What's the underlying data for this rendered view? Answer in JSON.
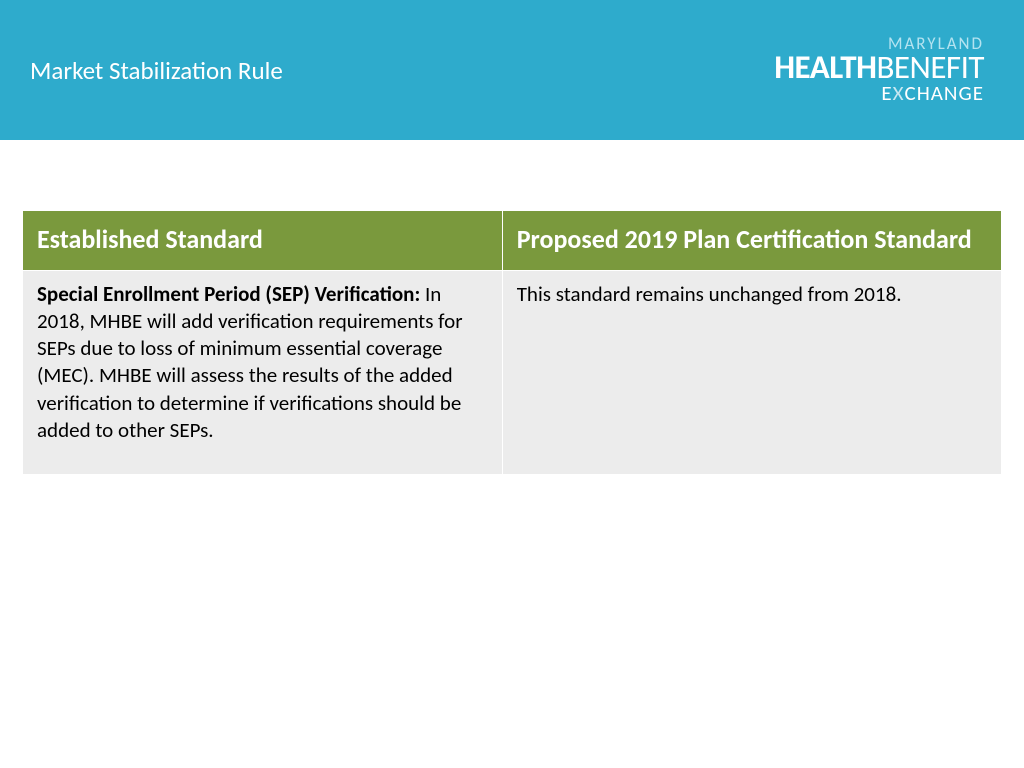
{
  "header": {
    "title": "Market Stabilization Rule",
    "bg_color": "#2eabcc",
    "logo": {
      "line1": "MARYLAND",
      "line2a": "HEALTH",
      "line2b": "BENEFIT",
      "line3a": "E",
      "line3b": "X",
      "line3c": "CHANGE"
    }
  },
  "table": {
    "header_bg": "#7a993d",
    "body_bg": "#ececec",
    "columns": [
      "Established Standard",
      "Proposed 2019 Plan Certification Standard"
    ],
    "row": {
      "left_bold": "Special Enrollment Period (SEP) Verification:",
      "left_rest": " In 2018, MHBE will add verification requirements for SEPs due to loss of minimum essential coverage (MEC). MHBE will assess the results of the added verification to determine if verifications should be added to other SEPs.",
      "right": "This standard remains unchanged from 2018."
    }
  }
}
